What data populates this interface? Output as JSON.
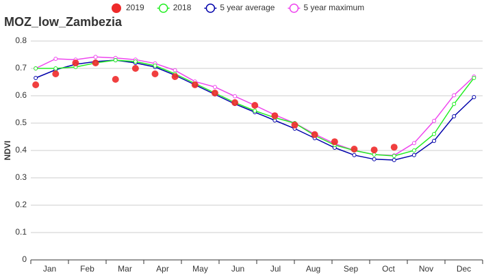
{
  "chart_data": {
    "type": "line",
    "title": "MOZ_low_Zambezia",
    "y_label": "NDVI",
    "xlim": [
      0,
      12
    ],
    "xticks": [
      {
        "value": 0.5,
        "label": "Jan"
      },
      {
        "value": 1.5,
        "label": "Feb"
      },
      {
        "value": 2.5,
        "label": "Mar"
      },
      {
        "value": 3.5,
        "label": "Apr"
      },
      {
        "value": 4.5,
        "label": "May"
      },
      {
        "value": 5.5,
        "label": "Jun"
      },
      {
        "value": 6.5,
        "label": "Jul"
      },
      {
        "value": 7.5,
        "label": "Aug"
      },
      {
        "value": 8.5,
        "label": "Sep"
      },
      {
        "value": 9.5,
        "label": "Oct"
      },
      {
        "value": 10.5,
        "label": "Nov"
      },
      {
        "value": 11.5,
        "label": "Dec"
      }
    ],
    "ylim": [
      0,
      0.8
    ],
    "yticks": [
      0,
      0.1,
      0.2,
      0.3,
      0.4,
      0.5,
      0.6,
      0.7,
      0.8
    ],
    "grid": true,
    "x": [
      0.13,
      0.66,
      1.19,
      1.72,
      2.25,
      2.78,
      3.3,
      3.83,
      4.36,
      4.89,
      5.42,
      5.95,
      6.48,
      7.01,
      7.54,
      8.07,
      8.59,
      9.12,
      9.65,
      10.18,
      10.71,
      11.24,
      11.77
    ],
    "series": [
      {
        "name": "2019",
        "color": "#ee2a2a",
        "style": "dots",
        "values": [
          0.64,
          0.68,
          0.72,
          0.72,
          0.66,
          0.7,
          0.68,
          0.67,
          0.64,
          0.61,
          0.575,
          0.565,
          0.527,
          0.493,
          0.458,
          0.432,
          0.405,
          0.402,
          0.412,
          null,
          null,
          null,
          null
        ]
      },
      {
        "name": "2018",
        "color": "#22ee22",
        "style": "line",
        "values": [
          0.7,
          0.7,
          0.705,
          0.72,
          0.73,
          0.725,
          0.71,
          0.68,
          0.645,
          0.61,
          0.575,
          0.545,
          0.52,
          0.5,
          0.455,
          0.42,
          0.4,
          0.385,
          0.38,
          0.4,
          0.46,
          0.57,
          0.665
        ]
      },
      {
        "name": "5 year average",
        "color": "#0000aa",
        "style": "line",
        "values": [
          0.665,
          0.695,
          0.715,
          0.725,
          0.73,
          0.72,
          0.705,
          0.675,
          0.64,
          0.605,
          0.57,
          0.54,
          0.51,
          0.48,
          0.445,
          0.41,
          0.383,
          0.368,
          0.365,
          0.383,
          0.435,
          0.525,
          0.595
        ]
      },
      {
        "name": "5 year maximum",
        "color": "#ee44ee",
        "style": "line",
        "values": [
          0.7,
          0.735,
          0.732,
          0.742,
          0.738,
          0.732,
          0.718,
          0.693,
          0.652,
          0.632,
          0.598,
          0.565,
          0.53,
          0.5,
          0.46,
          0.425,
          0.4,
          0.385,
          0.382,
          0.427,
          0.508,
          0.602,
          0.67
        ]
      }
    ]
  }
}
